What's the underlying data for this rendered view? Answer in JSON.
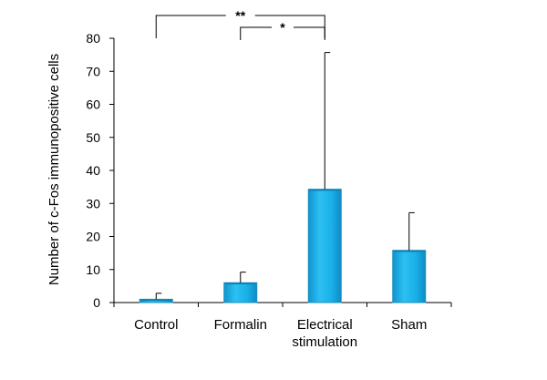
{
  "chart_data": {
    "type": "bar",
    "title": "",
    "xlabel": "",
    "ylabel": "Number of c-Fos immunopositive cells",
    "ylim": [
      0,
      80
    ],
    "yticks": [
      0,
      10,
      20,
      30,
      40,
      50,
      60,
      70,
      80
    ],
    "categories": [
      [
        "Control"
      ],
      [
        "Formalin"
      ],
      [
        "Electrical",
        "stimulation"
      ],
      [
        "Sham"
      ]
    ],
    "values": [
      1.0,
      6.0,
      34.3,
      15.8
    ],
    "error_upper": [
      1.8,
      3.2,
      41.4,
      11.4
    ],
    "bar_color": "#1ab0e8",
    "bar_edge_color": "#1a8fbf",
    "grid": false,
    "legend": false,
    "significance": [
      {
        "from": 0,
        "to": 2,
        "label": "**"
      },
      {
        "from": 1,
        "to": 2,
        "label": "*"
      }
    ]
  }
}
